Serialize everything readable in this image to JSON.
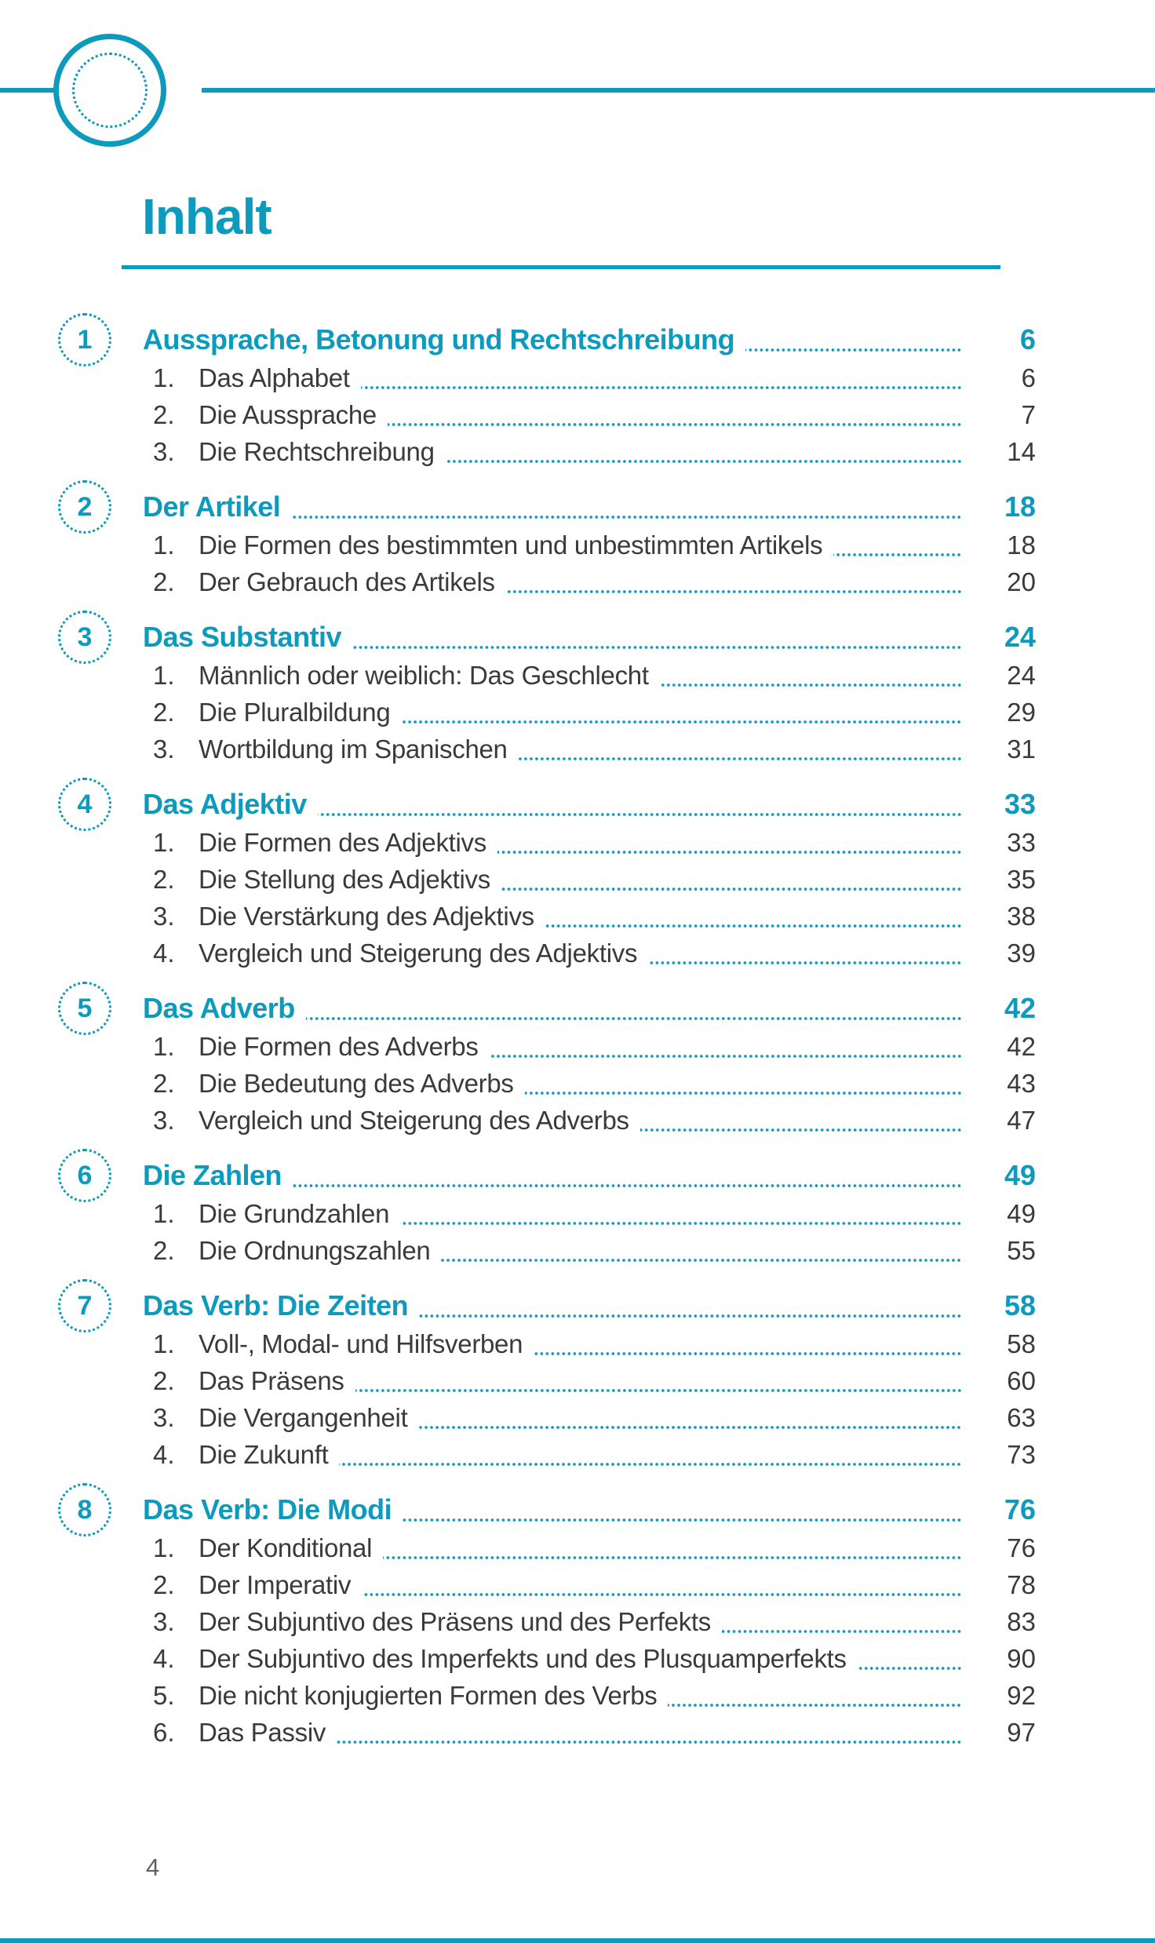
{
  "page": {
    "title": "Inhalt",
    "footer_page_number": "4"
  },
  "colors": {
    "accent": "#0d9abc",
    "body_text": "#3a3a3a",
    "footer_text": "#606060"
  },
  "toc": {
    "sections": [
      {
        "number": "1",
        "title": "Aussprache, Betonung und Rechtschreibung",
        "page": "6",
        "items": [
          {
            "number": "1.",
            "title": "Das Alphabet",
            "page": "6"
          },
          {
            "number": "2.",
            "title": "Die Aussprache",
            "page": "7"
          },
          {
            "number": "3.",
            "title": "Die Rechtschreibung",
            "page": "14"
          }
        ]
      },
      {
        "number": "2",
        "title": "Der Artikel",
        "page": "18",
        "items": [
          {
            "number": "1.",
            "title": "Die Formen des bestimmten und unbestimmten Artikels",
            "page": "18"
          },
          {
            "number": "2.",
            "title": "Der Gebrauch des Artikels",
            "page": "20"
          }
        ]
      },
      {
        "number": "3",
        "title": "Das Substantiv",
        "page": "24",
        "items": [
          {
            "number": "1.",
            "title": "Männlich oder weiblich: Das Geschlecht",
            "page": "24"
          },
          {
            "number": "2.",
            "title": "Die Pluralbildung",
            "page": "29"
          },
          {
            "number": "3.",
            "title": "Wortbildung im Spanischen",
            "page": "31"
          }
        ]
      },
      {
        "number": "4",
        "title": "Das Adjektiv",
        "page": "33",
        "items": [
          {
            "number": "1.",
            "title": "Die Formen des Adjektivs",
            "page": "33"
          },
          {
            "number": "2.",
            "title": "Die Stellung des Adjektivs",
            "page": "35"
          },
          {
            "number": "3.",
            "title": "Die Verstärkung des Adjektivs",
            "page": "38"
          },
          {
            "number": "4.",
            "title": "Vergleich und Steigerung des Adjektivs",
            "page": "39"
          }
        ]
      },
      {
        "number": "5",
        "title": "Das Adverb",
        "page": "42",
        "items": [
          {
            "number": "1.",
            "title": "Die Formen des Adverbs",
            "page": "42"
          },
          {
            "number": "2.",
            "title": "Die Bedeutung des Adverbs",
            "page": "43"
          },
          {
            "number": "3.",
            "title": "Vergleich und Steigerung des Adverbs",
            "page": "47"
          }
        ]
      },
      {
        "number": "6",
        "title": "Die Zahlen",
        "page": "49",
        "items": [
          {
            "number": "1.",
            "title": "Die Grundzahlen",
            "page": "49"
          },
          {
            "number": "2.",
            "title": "Die Ordnungszahlen",
            "page": "55"
          }
        ]
      },
      {
        "number": "7",
        "title": "Das Verb: Die Zeiten",
        "page": "58",
        "items": [
          {
            "number": "1.",
            "title": "Voll-, Modal- und Hilfsverben",
            "page": "58"
          },
          {
            "number": "2.",
            "title": "Das Präsens",
            "page": "60"
          },
          {
            "number": "3.",
            "title": "Die Vergangenheit",
            "page": "63"
          },
          {
            "number": "4.",
            "title": "Die Zukunft",
            "page": "73"
          }
        ]
      },
      {
        "number": "8",
        "title": "Das Verb: Die Modi",
        "page": "76",
        "items": [
          {
            "number": "1.",
            "title": "Der Konditional",
            "page": "76"
          },
          {
            "number": "2.",
            "title": "Der Imperativ",
            "page": "78"
          },
          {
            "number": "3.",
            "title": "Der Subjuntivo des Präsens und des Perfekts",
            "page": "83"
          },
          {
            "number": "4.",
            "title": "Der Subjuntivo des Imperfekts und des Plusquamperfekts",
            "page": "90"
          },
          {
            "number": "5.",
            "title": "Die nicht konjugierten Formen des Verbs",
            "page": "92"
          },
          {
            "number": "6.",
            "title": "Das Passiv",
            "page": "97"
          }
        ]
      }
    ]
  }
}
